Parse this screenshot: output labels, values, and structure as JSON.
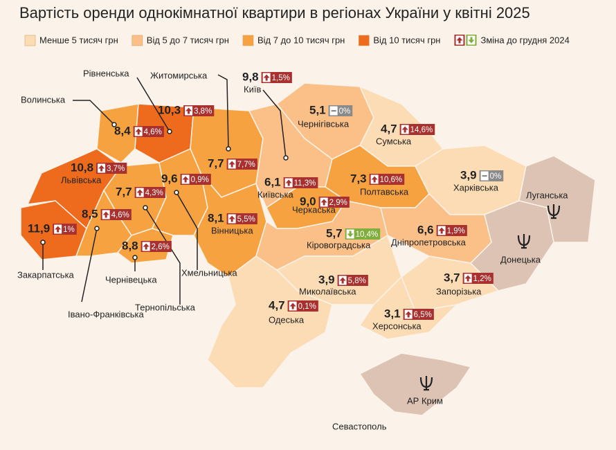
{
  "title": "Вартість оренди однокімнатної квартири в регіонах України у квітні 2025",
  "legend": [
    {
      "label": "Менше 5 тисяч грн",
      "color": "#fcdcb4"
    },
    {
      "label": "Від 5 до 7 тисяч грн",
      "color": "#fac088"
    },
    {
      "label": "Від 7 до 10 тисяч грн",
      "color": "#f7a240"
    },
    {
      "label": "Від 10 тисяч грн",
      "color": "#ee6b1e"
    },
    {
      "label": "Зміна до грудня 2024"
    }
  ],
  "regions": [
    {
      "name": "Волинська",
      "value": "8,4",
      "change": "4,6%",
      "direction": "up",
      "color": "#f7a240"
    },
    {
      "name": "Рівненська",
      "value": "10,3",
      "change": "3,8%",
      "direction": "up",
      "color": "#ee6b1e"
    },
    {
      "name": "Житомирська",
      "value": "7,7",
      "change": "7,7%",
      "direction": "up",
      "color": "#f7a240"
    },
    {
      "name": "Київ",
      "value": "9,8",
      "change": "1,5%",
      "direction": "up",
      "color": "#f7a240"
    },
    {
      "name": "Чернігівська",
      "value": "5,1",
      "change": "0%",
      "direction": "flat",
      "color": "#fac088"
    },
    {
      "name": "Сумська",
      "value": "4,7",
      "change": "14,6%",
      "direction": "up",
      "color": "#fcdcb4"
    },
    {
      "name": "Харківська",
      "value": "3,9",
      "change": "0%",
      "direction": "flat",
      "color": "#fcdcb4"
    },
    {
      "name": "Львівська",
      "value": "10,8",
      "change": "3,7%",
      "direction": "up",
      "color": "#ee6b1e"
    },
    {
      "name": "Тернопільська",
      "value": "7,7",
      "change": "4,3%",
      "direction": "up",
      "color": "#f7a240"
    },
    {
      "name": "Хмельницька",
      "value": "9,6",
      "change": "0,9%",
      "direction": "up",
      "color": "#f7a240"
    },
    {
      "name": "Київська",
      "value": "6,1",
      "change": "11,3%",
      "direction": "up",
      "color": "#fac088"
    },
    {
      "name": "Полтавська",
      "value": "7,3",
      "change": "10,6%",
      "direction": "up",
      "color": "#f7a240"
    },
    {
      "name": "Закарпатська",
      "value": "11,9",
      "change": "1%",
      "direction": "up",
      "color": "#ee6b1e"
    },
    {
      "name": "Івано-Франківська",
      "value": "8,5",
      "change": "4,6%",
      "direction": "up",
      "color": "#f7a240"
    },
    {
      "name": "Вінницька",
      "value": "8,1",
      "change": "5,5%",
      "direction": "up",
      "color": "#f7a240"
    },
    {
      "name": "Черкаська",
      "value": "9,0",
      "change": "2,9%",
      "direction": "up",
      "color": "#f7a240"
    },
    {
      "name": "Кіровоградська",
      "value": "5,7",
      "change": "10,4%",
      "direction": "down",
      "color": "#fac088"
    },
    {
      "name": "Дніпропетровська",
      "value": "6,6",
      "change": "1,9%",
      "direction": "up",
      "color": "#fac088"
    },
    {
      "name": "Чернівецька",
      "value": "8,8",
      "change": "2,6%",
      "direction": "up",
      "color": "#f7a240"
    },
    {
      "name": "Миколаївська",
      "value": "3,9",
      "change": "5,8%",
      "direction": "up",
      "color": "#fcdcb4"
    },
    {
      "name": "Запорізька",
      "value": "3,7",
      "change": "1,2%",
      "direction": "up",
      "color": "#fcdcb4"
    },
    {
      "name": "Одеська",
      "value": "4,7",
      "change": "0,1%",
      "direction": "up",
      "color": "#fcdcb4"
    },
    {
      "name": "Херсонська",
      "value": "3,1",
      "change": "6,5%",
      "direction": "up",
      "color": "#fcdcb4"
    }
  ],
  "occupied": [
    {
      "name": "Луганська",
      "color": "#dcc3b3"
    },
    {
      "name": "Донецька",
      "color": "#dcc3b3"
    },
    {
      "name": "АР Крим",
      "color": "#dcc3b3"
    },
    {
      "name": "Севастополь"
    }
  ],
  "badge_colors": {
    "up": "#a8302f",
    "down": "#7fae3c",
    "flat": "#8a8a8a"
  }
}
